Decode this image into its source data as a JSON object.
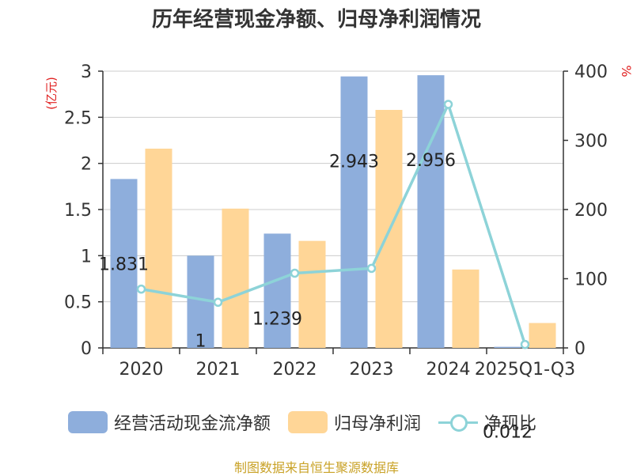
{
  "chart_data": {
    "type": "bar",
    "title": "历年经营现金净额、归母净利润情况",
    "categories": [
      "2020",
      "2021",
      "2022",
      "2023",
      "2024",
      "2025Q1-Q3"
    ],
    "series": [
      {
        "name": "经营活动现金流净额",
        "type": "bar",
        "axis": "left",
        "color": "#8eaedc",
        "values": [
          1.831,
          1.0,
          1.239,
          2.943,
          2.956,
          0.012
        ],
        "labels": [
          "1.831",
          "1",
          "1.239",
          "2.943",
          "2.956",
          "0.012"
        ]
      },
      {
        "name": "归母净利润",
        "type": "bar",
        "axis": "left",
        "color": "#ffd697",
        "values": [
          2.16,
          1.51,
          1.16,
          2.58,
          0.85,
          0.27
        ]
      },
      {
        "name": "净现比",
        "type": "line",
        "axis": "right",
        "color": "#8dd3d8",
        "values": [
          85,
          66,
          108,
          115,
          352,
          5
        ]
      }
    ],
    "left_axis": {
      "label": "(亿元)",
      "ylim": [
        0,
        3
      ],
      "ticks": [
        "0",
        "0.5",
        "1",
        "1.5",
        "2",
        "2.5",
        "3"
      ]
    },
    "right_axis": {
      "label": "%",
      "ylim": [
        0,
        400
      ],
      "ticks": [
        "0",
        "100",
        "200",
        "300",
        "400"
      ]
    },
    "grid": true,
    "legend_position": "bottom"
  },
  "legend": {
    "items": [
      "经营活动现金流净额",
      "归母净利润",
      "净现比"
    ]
  },
  "source": "制图数据来自恒生聚源数据库"
}
